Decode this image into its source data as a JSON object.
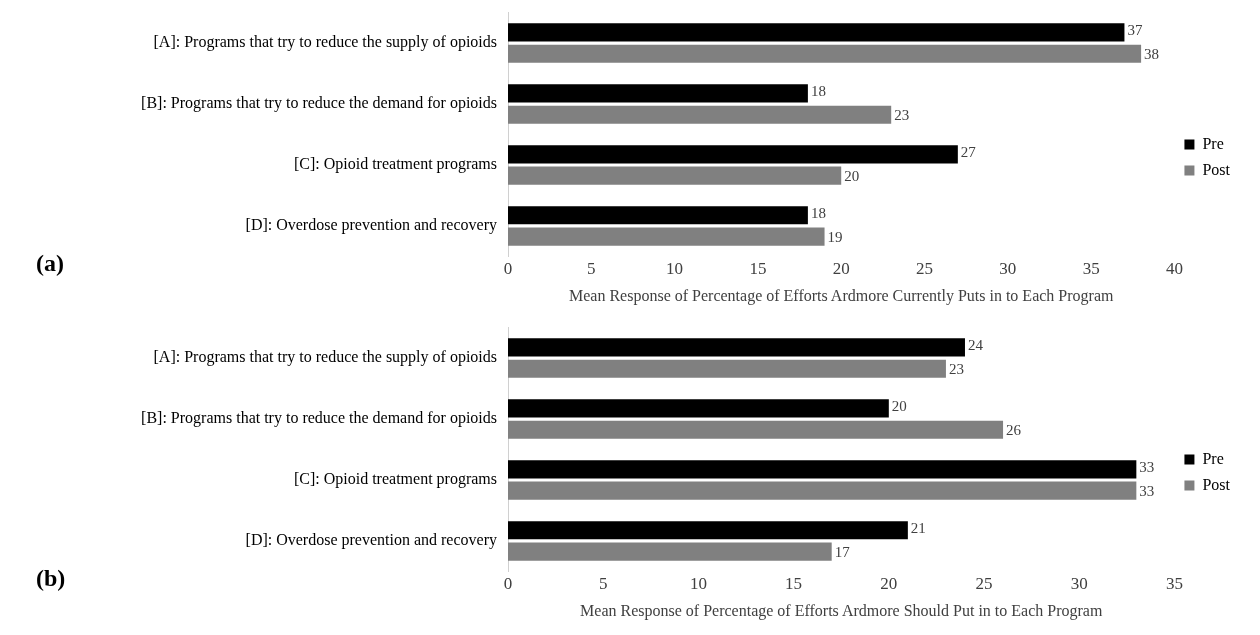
{
  "chart_data": [
    {
      "type": "bar",
      "orientation": "horizontal",
      "categories": [
        "[A]: Programs that try to reduce the supply of opioids",
        "[B]: Programs that try to reduce the demand for opioids",
        "[C]: Opioid treatment programs",
        "[D]: Overdose prevention and recovery"
      ],
      "series": [
        {
          "name": "Pre",
          "color": "#000000",
          "values": [
            37,
            18,
            27,
            18
          ]
        },
        {
          "name": "Post",
          "color": "#808080",
          "values": [
            38,
            23,
            20,
            19
          ]
        }
      ],
      "xlabel": "Mean Response of Percentage of Efforts Ardmore Currently Puts in to Each Program",
      "xlim": [
        0,
        40
      ],
      "xticks": [
        0,
        5,
        10,
        15,
        20,
        25,
        30,
        35,
        40
      ],
      "data_labels": true,
      "grid": false,
      "legend": "right",
      "annotations": [
        "(a)"
      ]
    },
    {
      "type": "bar",
      "orientation": "horizontal",
      "categories": [
        "[A]: Programs that try to reduce the supply of opioids",
        "[B]: Programs that try to reduce the demand for opioids",
        "[C]: Opioid treatment programs",
        "[D]: Overdose prevention and recovery"
      ],
      "series": [
        {
          "name": "Pre",
          "color": "#000000",
          "values": [
            24,
            20,
            33,
            21
          ]
        },
        {
          "name": "Post",
          "color": "#808080",
          "values": [
            23,
            26,
            33,
            17
          ]
        }
      ],
      "xlabel": "Mean Response of Percentage of Efforts Ardmore Should Put in to Each Program",
      "xlim": [
        0,
        35
      ],
      "xticks": [
        0,
        5,
        10,
        15,
        20,
        25,
        30,
        35
      ],
      "data_labels": true,
      "grid": false,
      "legend": "right",
      "annotations": [
        "(b)"
      ]
    }
  ]
}
